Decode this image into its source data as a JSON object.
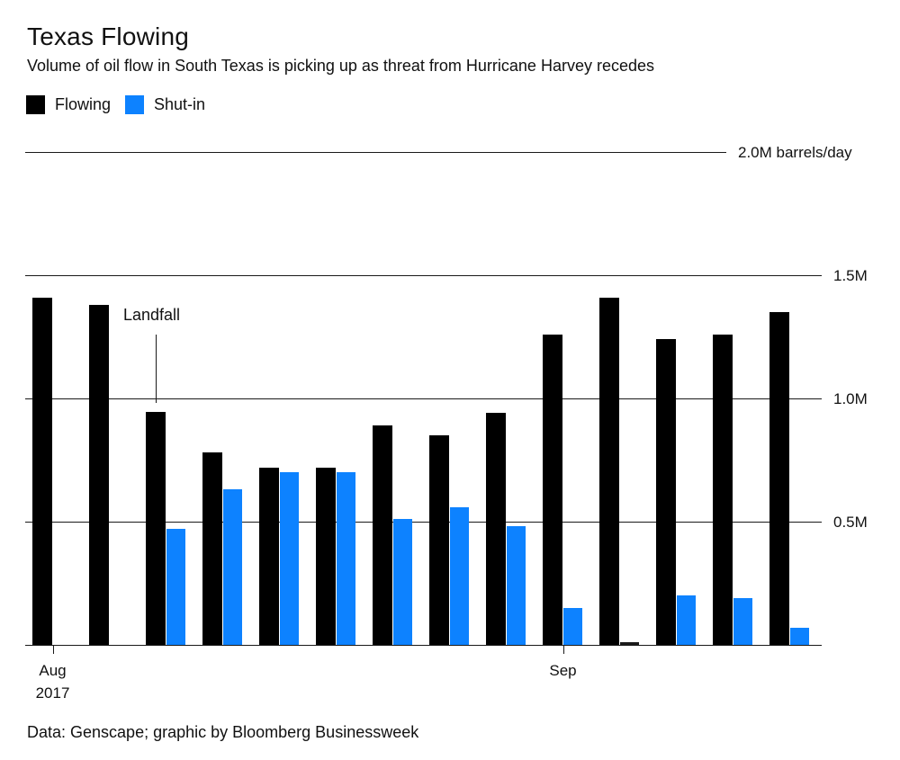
{
  "title": "Texas Flowing",
  "subtitle": "Volume of oil flow in South Texas is picking up as threat from Hurricane Harvey recedes",
  "legend": {
    "flowing_label": "Flowing",
    "shutin_label": "Shut-in"
  },
  "colors": {
    "flowing": "#000000",
    "shutin": "#0d82ff",
    "near_zero_bar": "#1a1a1a",
    "axis": "#1a1a1a",
    "text": "#111111"
  },
  "annotation": {
    "label": "Landfall",
    "at_group": 3
  },
  "footer": "Data: Genscape; graphic by Bloomberg Businessweek",
  "chart_data": {
    "type": "bar",
    "title": "Texas Flowing",
    "subtitle": "Volume of oil flow in South Texas is picking up as threat from Hurricane Harvey recedes",
    "unit": "M barrels/day",
    "ylim": [
      0,
      2.0
    ],
    "grid": "horizontal",
    "legend_position": "top-left",
    "groups": 14,
    "categories": [
      "1",
      "2",
      "3",
      "4",
      "5",
      "6",
      "7",
      "8",
      "9",
      "10",
      "11",
      "12",
      "13",
      "14"
    ],
    "y_ticks": [
      {
        "value": 2.0,
        "label": "2.0M barrels/day"
      },
      {
        "value": 1.5,
        "label": "1.5M"
      },
      {
        "value": 1.0,
        "label": "1.0M"
      },
      {
        "value": 0.5,
        "label": "0.5M"
      }
    ],
    "x_ticks": [
      {
        "group": 1,
        "lines": [
          "Aug",
          "2017"
        ]
      },
      {
        "group": 10,
        "lines": [
          "Sep"
        ]
      }
    ],
    "series": [
      {
        "name": "Flowing",
        "values": [
          1.41,
          1.38,
          0.945,
          0.78,
          0.72,
          0.72,
          0.89,
          0.85,
          0.94,
          1.26,
          1.41,
          1.24,
          1.26,
          1.35
        ]
      },
      {
        "name": "Shut-in",
        "values": [
          0,
          0,
          0.47,
          0.63,
          0.7,
          0.7,
          0.51,
          0.56,
          0.48,
          0.15,
          0.01,
          0.2,
          0.19,
          0.07
        ]
      }
    ],
    "annotation": {
      "label": "Landfall",
      "at_group": 3
    }
  }
}
